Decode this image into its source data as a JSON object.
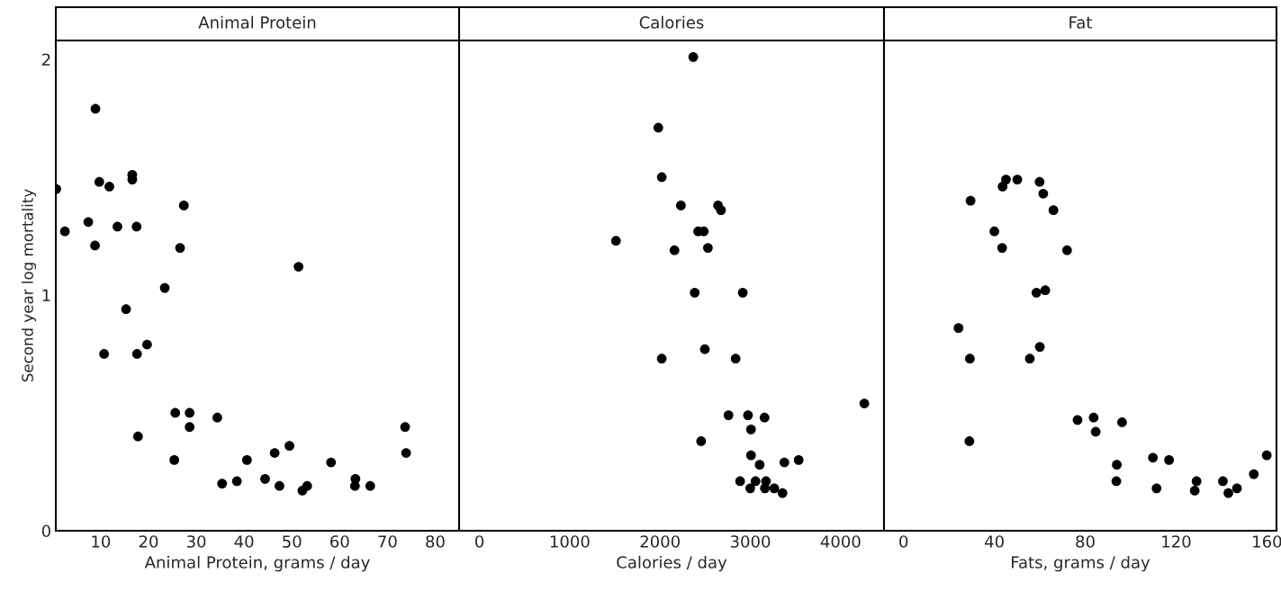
{
  "chart_data": [
    {
      "type": "scatter",
      "title": "Animal Protein",
      "xlabel": "Animal Protein, grams / day",
      "ylabel": "Second year log mortality",
      "color": "#000000",
      "marker": "circle",
      "grid": false,
      "x": [
        0.7,
        2.5,
        8.9,
        7.4,
        9.7,
        11.8,
        8.8,
        13.5,
        16.6,
        16.6,
        17.5,
        27.4,
        26.6,
        51.4,
        23.4,
        15.3,
        10.7,
        17.6,
        19.7,
        25.6,
        28.6,
        28.6,
        34.4,
        17.8,
        25.4,
        73.7,
        73.9,
        46.4,
        49.5,
        40.6,
        35.4,
        38.5,
        44.4,
        47.4,
        52.2,
        53.2,
        58.2,
        63.3,
        63.2,
        66.4
      ],
      "values": [
        1.45,
        1.27,
        1.79,
        1.31,
        1.48,
        1.46,
        1.21,
        1.29,
        1.51,
        1.49,
        1.29,
        1.38,
        1.2,
        1.12,
        1.03,
        0.94,
        0.75,
        0.75,
        0.79,
        0.5,
        0.5,
        0.44,
        0.48,
        0.4,
        0.3,
        0.44,
        0.33,
        0.33,
        0.36,
        0.3,
        0.2,
        0.21,
        0.22,
        0.19,
        0.17,
        0.19,
        0.29,
        0.22,
        0.19,
        0.19
      ],
      "xlim": [
        0.6,
        85
      ],
      "xticks": [
        10,
        20,
        30,
        40,
        50,
        60,
        70,
        80
      ],
      "ylim": [
        0,
        2.08
      ],
      "yticks": [
        0,
        1,
        2
      ]
    },
    {
      "type": "scatter",
      "title": "Calories",
      "xlabel": "Calories / day",
      "color": "#000000",
      "marker": "circle",
      "grid": false,
      "tick_labels": "x",
      "x": [
        2368,
        1981,
        2019,
        2231,
        2642,
        2675,
        2422,
        2484,
        1512,
        2160,
        2530,
        2384,
        2916,
        2496,
        2019,
        2837,
        4262,
        2758,
        2974,
        3157,
        3007,
        2455,
        3007,
        3103,
        3377,
        3535,
        2887,
        3057,
        3173,
        2999,
        3161,
        3265,
        3356
      ],
      "values": [
        2.01,
        1.71,
        1.5,
        1.38,
        1.38,
        1.36,
        1.27,
        1.27,
        1.23,
        1.19,
        1.2,
        1.01,
        1.01,
        0.77,
        0.73,
        0.73,
        0.54,
        0.49,
        0.49,
        0.48,
        0.43,
        0.38,
        0.32,
        0.28,
        0.29,
        0.3,
        0.21,
        0.21,
        0.21,
        0.18,
        0.18,
        0.18,
        0.16
      ],
      "xlim": [
        -225,
        4480
      ],
      "xticks": [
        0,
        1000,
        2000,
        3000,
        4000
      ],
      "ylim": [
        0,
        2.08
      ]
    },
    {
      "type": "scatter",
      "title": "Fat",
      "xlabel": "Fats, grams / day",
      "color": "#000000",
      "marker": "circle",
      "grid": false,
      "tick_labels": "x",
      "x": [
        45.1,
        43.6,
        50.1,
        59.9,
        61.5,
        29.5,
        66.0,
        40.0,
        43.4,
        72.0,
        58.5,
        62.4,
        24.2,
        29.2,
        55.6,
        60.0,
        29.0,
        76.6,
        83.7,
        84.6,
        96.2,
        93.9,
        93.7,
        109.8,
        116.9,
        111.4,
        129.0,
        128.2,
        140.6,
        143.0,
        146.8,
        154.2,
        159.9
      ],
      "values": [
        1.49,
        1.46,
        1.49,
        1.48,
        1.43,
        1.4,
        1.36,
        1.27,
        1.2,
        1.19,
        1.01,
        1.02,
        0.86,
        0.73,
        0.73,
        0.78,
        0.38,
        0.47,
        0.48,
        0.42,
        0.46,
        0.28,
        0.21,
        0.31,
        0.3,
        0.18,
        0.21,
        0.17,
        0.21,
        0.16,
        0.18,
        0.24,
        0.32
      ],
      "xlim": [
        -8.6,
        164.2
      ],
      "xticks": [
        0,
        40,
        80,
        120,
        160
      ],
      "ylim": [
        0,
        2.08
      ]
    }
  ]
}
